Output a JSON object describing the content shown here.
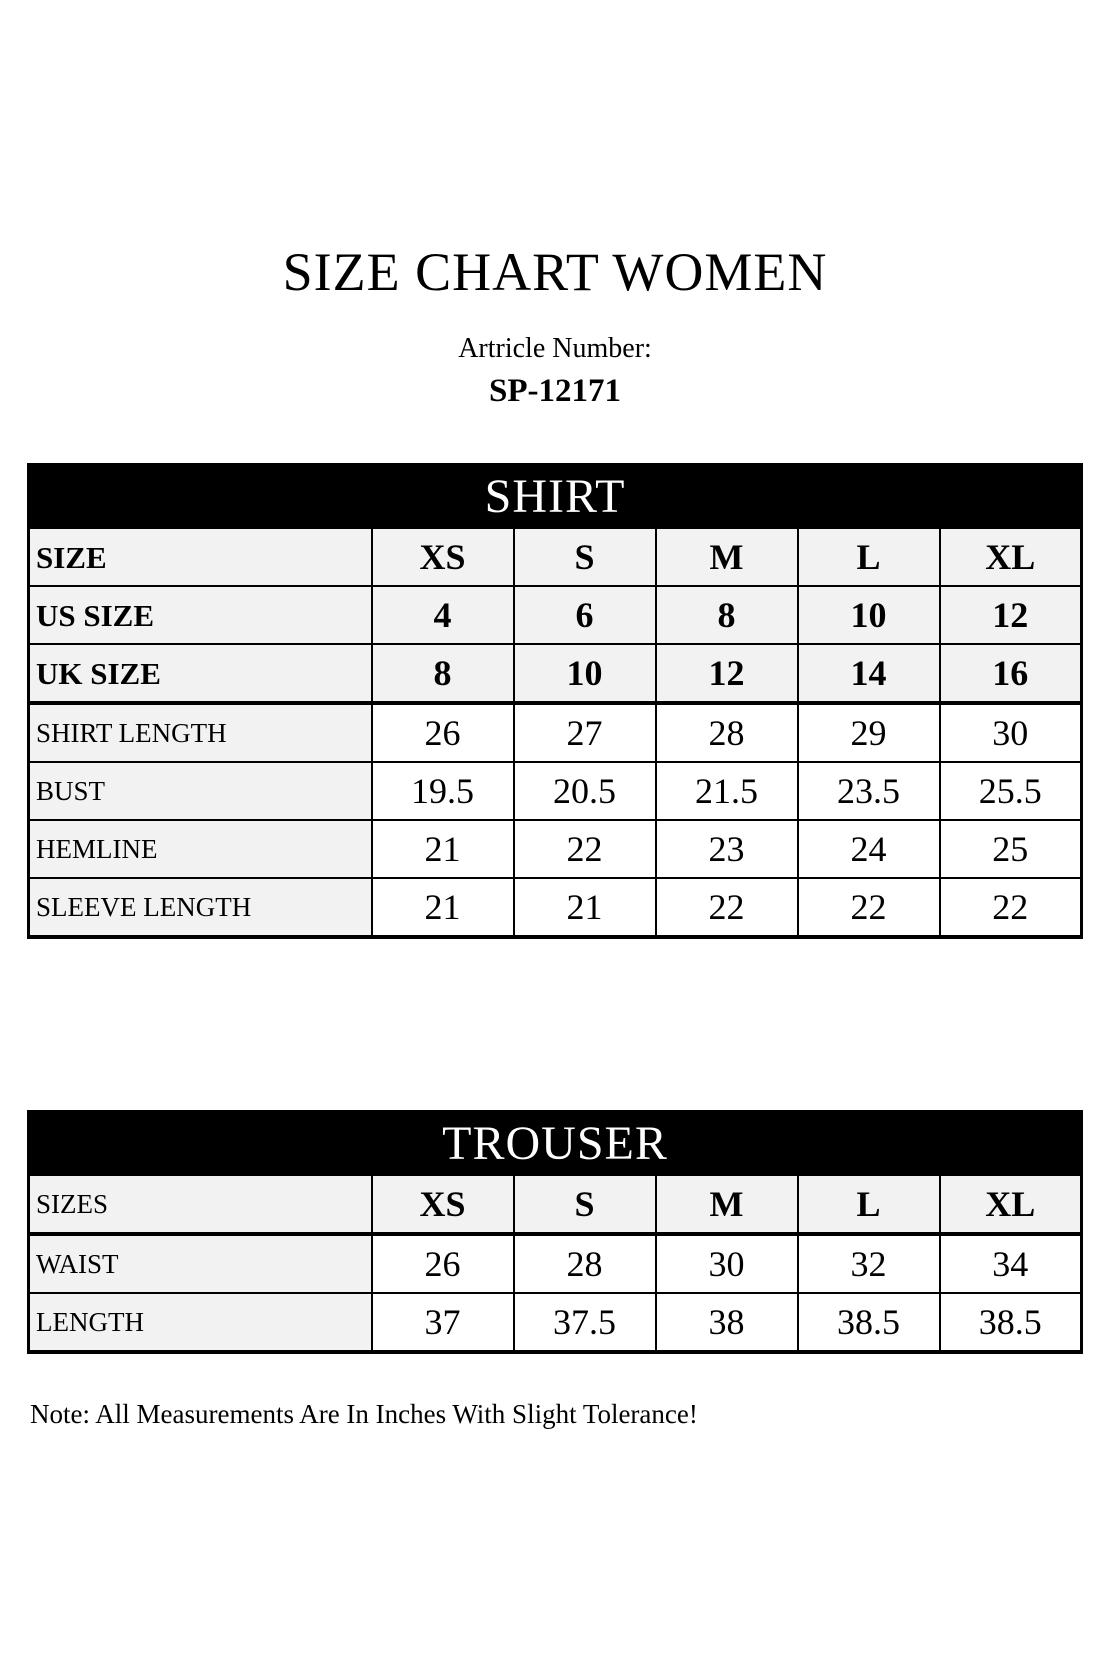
{
  "page": {
    "title": "SIZE CHART WOMEN",
    "article_label": "Artricle Number:",
    "article_number": "SP-12171",
    "note": "Note: All Measurements Are In Inches With Slight Tolerance!"
  },
  "colors": {
    "table_header_bg": "#000000",
    "table_header_text": "#ffffff",
    "shaded_cell_bg": "#f2f2f2",
    "border": "#000000"
  },
  "shirt": {
    "title": "SHIRT",
    "rows": [
      {
        "label": "SIZE",
        "values": [
          "XS",
          "S",
          "M",
          "L",
          "XL"
        ],
        "bold_label": true,
        "bold_values": true,
        "shaded_values": true,
        "thick_bottom": false
      },
      {
        "label": "US SIZE",
        "values": [
          "4",
          "6",
          "8",
          "10",
          "12"
        ],
        "bold_label": true,
        "bold_values": true,
        "shaded_values": true,
        "thick_bottom": false
      },
      {
        "label": "UK SIZE",
        "values": [
          "8",
          "10",
          "12",
          "14",
          "16"
        ],
        "bold_label": true,
        "bold_values": true,
        "shaded_values": true,
        "thick_bottom": true
      },
      {
        "label": "SHIRT LENGTH",
        "values": [
          "26",
          "27",
          "28",
          "29",
          "30"
        ],
        "bold_label": false,
        "bold_values": false,
        "shaded_values": false,
        "thick_bottom": false
      },
      {
        "label": "BUST",
        "values": [
          "19.5",
          "20.5",
          "21.5",
          "23.5",
          "25.5"
        ],
        "bold_label": false,
        "bold_values": false,
        "shaded_values": false,
        "thick_bottom": false
      },
      {
        "label": "HEMLINE",
        "values": [
          "21",
          "22",
          "23",
          "24",
          "25"
        ],
        "bold_label": false,
        "bold_values": false,
        "shaded_values": false,
        "thick_bottom": false
      },
      {
        "label": "SLEEVE LENGTH",
        "values": [
          "21",
          "21",
          "22",
          "22",
          "22"
        ],
        "bold_label": false,
        "bold_values": false,
        "shaded_values": false,
        "thick_bottom": false
      }
    ]
  },
  "trouser": {
    "title": "TROUSER",
    "rows": [
      {
        "label": "SIZES",
        "values": [
          "XS",
          "S",
          "M",
          "L",
          "XL"
        ],
        "bold_label": false,
        "bold_values": true,
        "shaded_values": true,
        "thick_bottom": true
      },
      {
        "label": "WAIST",
        "values": [
          "26",
          "28",
          "30",
          "32",
          "34"
        ],
        "bold_label": false,
        "bold_values": false,
        "shaded_values": false,
        "thick_bottom": false
      },
      {
        "label": "LENGTH",
        "values": [
          "37",
          "37.5",
          "38",
          "38.5",
          "38.5"
        ],
        "bold_label": false,
        "bold_values": false,
        "shaded_values": false,
        "thick_bottom": false
      }
    ]
  }
}
